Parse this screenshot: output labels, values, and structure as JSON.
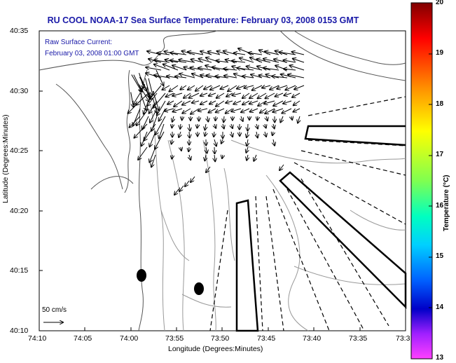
{
  "title": "RU COOL  NOAA-17  Sea Surface Temperature:  February 03, 2008 0153 GMT",
  "current_label": "Raw Surface Current:",
  "current_time": "February 03, 2008 01:00 GMT",
  "scale_label": "50 cm/s",
  "x_axis": {
    "label": "Longitude (Degrees:Minutes)",
    "ticks": [
      "74:10",
      "74:05",
      "74:00",
      "73:55",
      "73:50",
      "73:45",
      "73:40",
      "73:35",
      "73:3"
    ]
  },
  "y_axis": {
    "label": "Latitude (Degrees:Minutes)",
    "ticks": [
      "40:35",
      "40:30",
      "40:25",
      "40:20",
      "40:15",
      "40:10"
    ]
  },
  "colorbar": {
    "label": "Temperature (°C)",
    "ticks": [
      "20",
      "19",
      "18",
      "17",
      "16",
      "15",
      "14",
      "13"
    ],
    "min": 13,
    "max": 20
  }
}
